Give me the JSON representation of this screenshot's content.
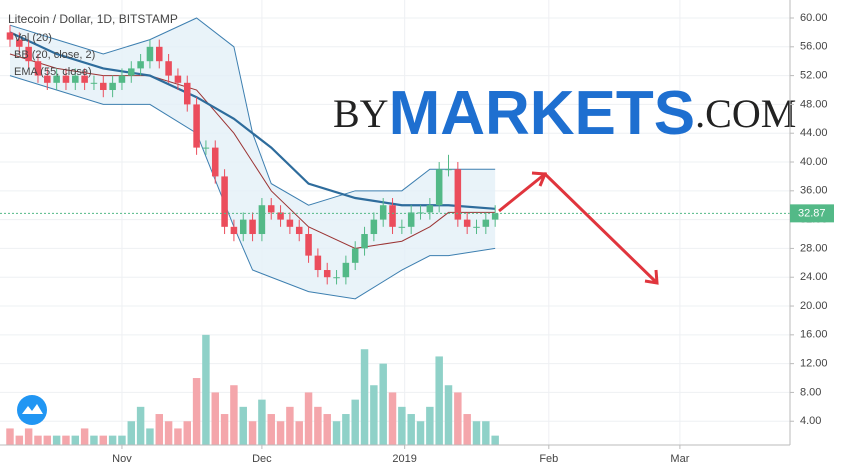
{
  "chart_data": {
    "type": "candlestick",
    "title": "Litecoin / Dollar, 1D, BITSTAMP",
    "indicators": [
      "Vol (20)",
      "BB (20, close, 2)",
      "EMA (55, close)"
    ],
    "watermark": [
      "BY",
      "MARKETS",
      ".COM"
    ],
    "up_color": "#53b987",
    "down_color": "#eb4d5c",
    "volume_up_color": "#8fd1c8",
    "volume_down_color": "#f4a6ab",
    "open": [
      58,
      57,
      56,
      54,
      52,
      51,
      52,
      51,
      52,
      51,
      51,
      50,
      51,
      52,
      53,
      54,
      56,
      54,
      52,
      51,
      48,
      42,
      42,
      38,
      31,
      30,
      32,
      30,
      34,
      33,
      32,
      31,
      30,
      27,
      25,
      24,
      24,
      26,
      28,
      30,
      32,
      34,
      31,
      31,
      33,
      33,
      34,
      39,
      39,
      32,
      31,
      31,
      32
    ],
    "high": [
      59,
      58,
      57,
      55,
      53,
      53,
      53,
      53,
      53,
      52,
      52,
      52,
      53,
      54,
      55,
      57,
      57,
      55,
      53,
      52,
      49,
      43,
      43,
      39,
      32,
      33,
      33,
      35,
      35,
      34,
      33,
      32,
      31,
      28,
      26,
      25,
      27,
      29,
      31,
      33,
      35,
      35,
      32,
      34,
      34,
      35,
      40,
      41,
      40,
      33,
      32,
      33,
      34
    ],
    "low": [
      56,
      55,
      53,
      51,
      50,
      50,
      50,
      50,
      50,
      50,
      49,
      49,
      50,
      51,
      52,
      53,
      53,
      51,
      50,
      47,
      41,
      41,
      37,
      30,
      29,
      29,
      29,
      29,
      32,
      31,
      30,
      29,
      26,
      24,
      23,
      23,
      23,
      25,
      27,
      29,
      31,
      30,
      30,
      30,
      32,
      32,
      33,
      38,
      31,
      30,
      30,
      30,
      31
    ],
    "close": [
      57,
      56,
      54,
      52,
      51,
      52,
      51,
      52,
      51,
      51,
      50,
      51,
      52,
      53,
      54,
      56,
      54,
      52,
      51,
      48,
      42,
      42,
      38,
      31,
      30,
      32,
      30,
      34,
      33,
      32,
      31,
      30,
      27,
      25,
      24,
      24,
      26,
      28,
      30,
      32,
      34,
      31,
      31,
      33,
      33,
      34,
      39,
      39,
      32,
      31,
      31,
      32,
      32.87
    ],
    "volume": [
      3,
      2,
      3,
      2,
      2,
      2,
      2,
      2,
      3,
      2,
      2,
      2,
      2,
      4,
      6,
      3,
      5,
      4,
      3,
      4,
      10,
      16,
      8,
      5,
      9,
      6,
      4,
      7,
      5,
      4,
      6,
      4,
      8,
      6,
      5,
      4,
      5,
      7,
      14,
      9,
      12,
      8,
      6,
      5,
      4,
      6,
      13,
      9,
      8,
      5,
      4,
      4,
      2
    ],
    "lines": [
      {
        "color": "#3d7fb0",
        "x": [
          0,
          5,
          10,
          15,
          20,
          24,
          26,
          28,
          32,
          37,
          42,
          45,
          47,
          52
        ],
        "values": [
          59,
          57,
          55,
          57,
          60,
          56,
          44,
          37,
          34,
          36,
          36,
          39,
          39,
          39
        ]
      },
      {
        "color": "#9b3434",
        "x": [
          0,
          5,
          10,
          15,
          20,
          24,
          26,
          28,
          32,
          37,
          42,
          45,
          47,
          52
        ],
        "values": [
          55,
          53,
          52,
          52,
          50,
          44,
          40,
          36,
          31,
          28,
          29,
          31,
          33,
          33
        ]
      },
      {
        "color": "#3d7fb0",
        "x": [
          0,
          5,
          10,
          15,
          20,
          24,
          26,
          28,
          32,
          37,
          42,
          45,
          47,
          52
        ],
        "values": [
          52,
          50,
          48,
          48,
          44,
          31,
          25,
          24,
          22,
          21,
          25,
          27,
          27,
          28
        ]
      },
      {
        "color": "#2e6c9c",
        "x": [
          0,
          5,
          10,
          15,
          20,
          24,
          26,
          28,
          32,
          37,
          42,
          45,
          47,
          52
        ],
        "values": [
          58,
          55,
          53,
          52,
          49,
          46,
          44,
          42,
          37,
          35,
          34,
          34,
          34,
          33.5
        ]
      }
    ],
    "band_fill": "#e3f0f8",
    "xlim": [
      -1.07,
      83.6
    ],
    "xticks": [
      {
        "value": 12,
        "label": "Nov"
      },
      {
        "value": 27,
        "label": "Dec"
      },
      {
        "value": 42.3,
        "label": "2019"
      },
      {
        "value": 57.75,
        "label": "Feb"
      },
      {
        "value": 71.8,
        "label": "Mar"
      }
    ],
    "ylim": [
      0.7,
      62.5
    ],
    "yticks": [
      {
        "value": 4,
        "label": "4.00"
      },
      {
        "value": 8,
        "label": "8.00"
      },
      {
        "value": 12,
        "label": "12.00"
      },
      {
        "value": 16,
        "label": "16.00"
      },
      {
        "value": 20,
        "label": "20.00"
      },
      {
        "value": 24,
        "label": "24.00"
      },
      {
        "value": 28,
        "label": "28.00"
      },
      {
        "value": 32,
        "label": "32.00"
      },
      {
        "value": 36,
        "label": "36.00"
      },
      {
        "value": 40,
        "label": "40.00"
      },
      {
        "value": 44,
        "label": "44.00"
      },
      {
        "value": 48,
        "label": "48.00"
      },
      {
        "value": 52,
        "label": "52.00"
      },
      {
        "value": 56,
        "label": "56.00"
      },
      {
        "value": 60,
        "label": "60.00"
      }
    ],
    "grid": true
  }
}
